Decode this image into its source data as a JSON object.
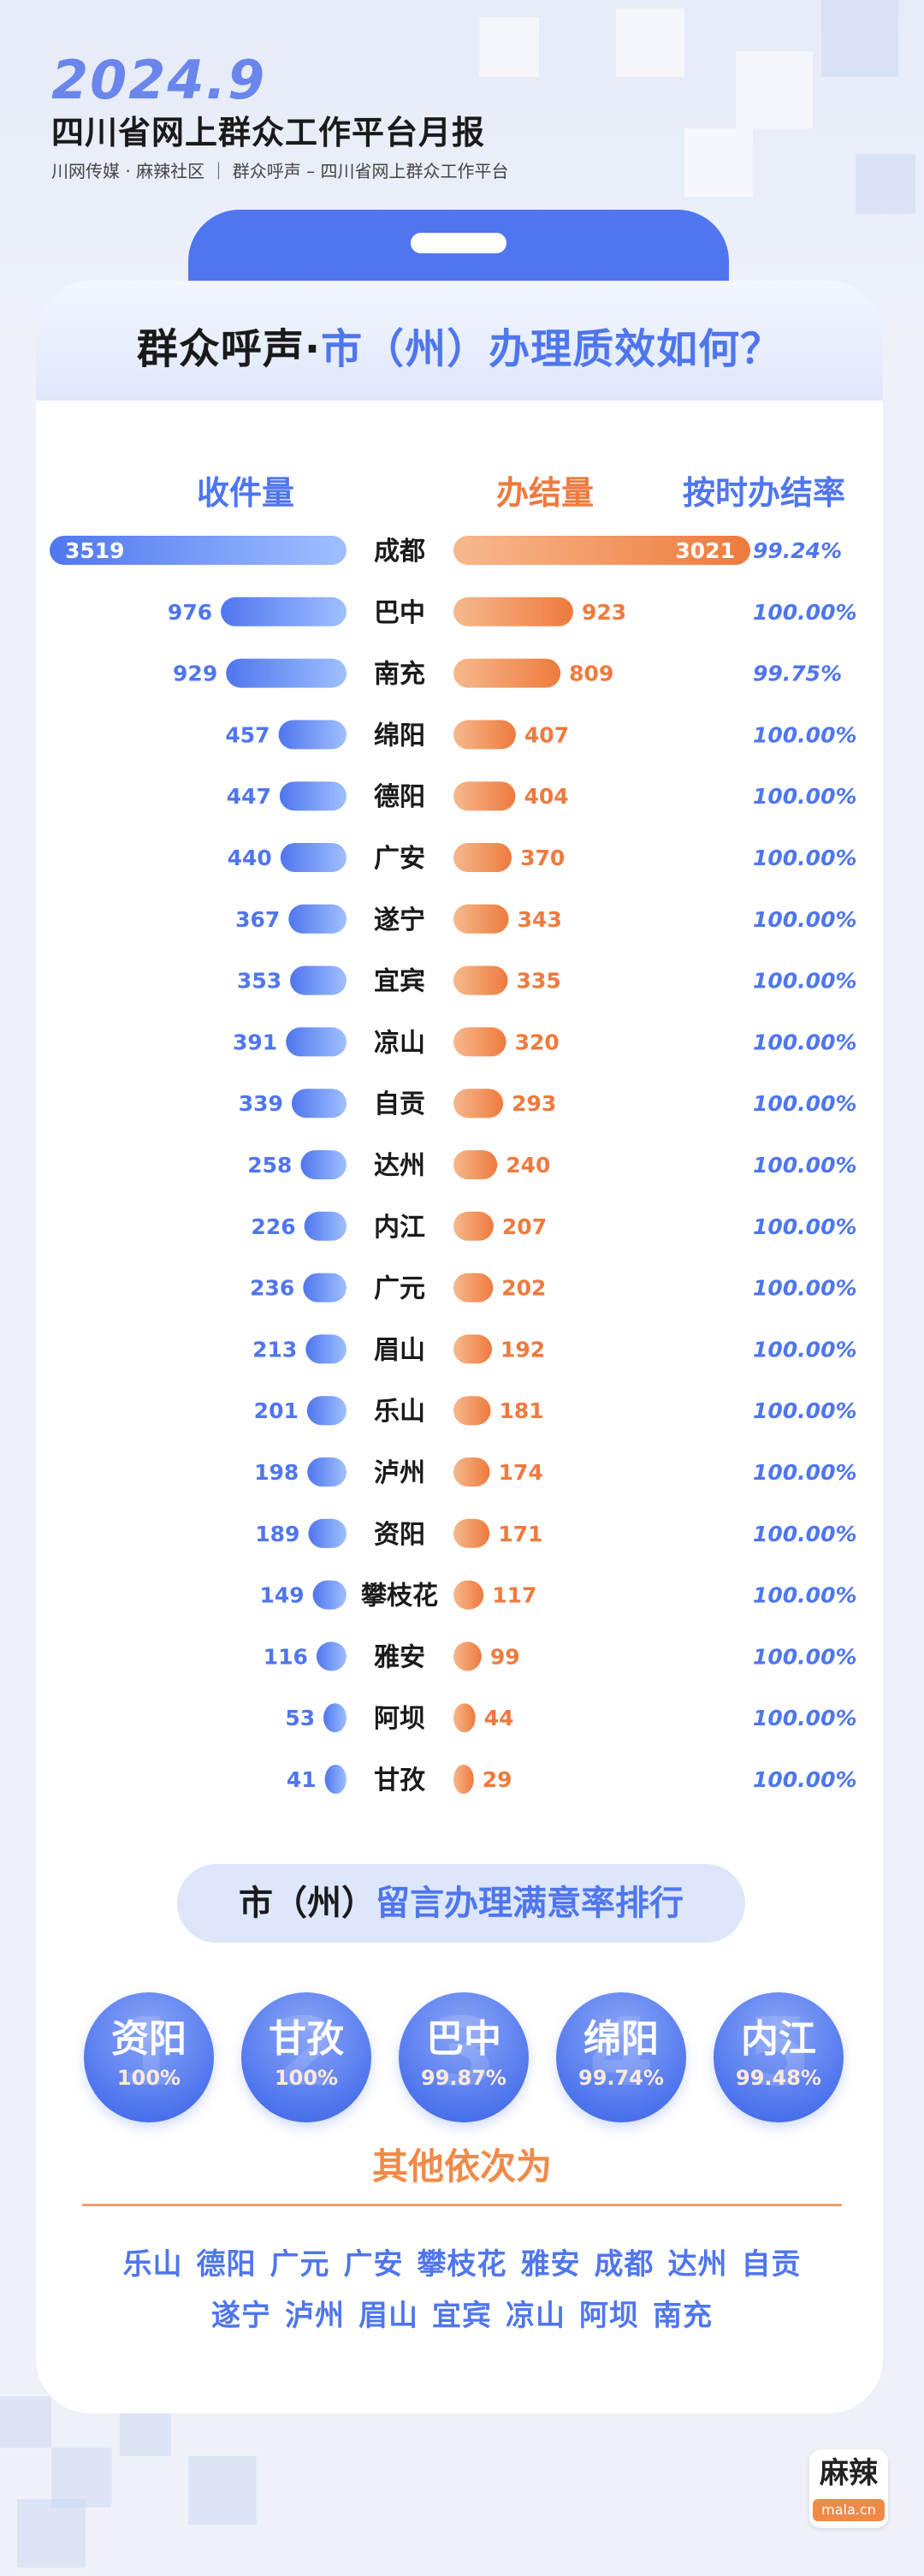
{
  "header": {
    "year": "2024.9",
    "title": "四川省网上群众工作平台月报",
    "subtitle": "川网传媒 · 麻辣社区 ｜ 群众呼声 – 四川省网上群众工作平台"
  },
  "card": {
    "title_part1": "群众呼声·",
    "title_part2": "市（州）办理质效如何？"
  },
  "columns": {
    "received": "收件量",
    "completed": "办结量",
    "ontime_rate": "按时办结率"
  },
  "colors": {
    "blue": "#4f76ee",
    "blue_light": "#9fc0ff",
    "orange": "#ee7a3e",
    "orange_light": "#f6b98d"
  },
  "chart_data": {
    "type": "bar",
    "categories": [
      "成都",
      "巴中",
      "南充",
      "绵阳",
      "德阳",
      "广安",
      "遂宁",
      "宜宾",
      "凉山",
      "自贡",
      "达州",
      "内江",
      "广元",
      "眉山",
      "乐山",
      "泸州",
      "资阳",
      "攀枝花",
      "雅安",
      "阿坝",
      "甘孜"
    ],
    "series": [
      {
        "name": "收件量",
        "values": [
          3519,
          976,
          929,
          457,
          447,
          440,
          367,
          353,
          391,
          339,
          258,
          226,
          236,
          213,
          201,
          198,
          189,
          149,
          116,
          53,
          41
        ]
      },
      {
        "name": "办结量",
        "values": [
          3021,
          923,
          809,
          407,
          404,
          370,
          343,
          335,
          320,
          293,
          240,
          207,
          202,
          192,
          181,
          174,
          171,
          117,
          99,
          44,
          29
        ]
      }
    ],
    "rates": [
      "99.24%",
      "100.00%",
      "99.75%",
      "100.00%",
      "100.00%",
      "100.00%",
      "100.00%",
      "100.00%",
      "100.00%",
      "100.00%",
      "100.00%",
      "100.00%",
      "100.00%",
      "100.00%",
      "100.00%",
      "100.00%",
      "100.00%",
      "100.00%",
      "100.00%",
      "100.00%",
      "100.00%"
    ]
  },
  "satisfaction": {
    "title_part1": "市（州）",
    "title_part2": "留言办理满意率排行",
    "top5": [
      {
        "rank": "1",
        "city": "资阳",
        "pct": "100%"
      },
      {
        "rank": "2",
        "city": "甘孜",
        "pct": "100%"
      },
      {
        "rank": "3",
        "city": "巴中",
        "pct": "99.87%"
      },
      {
        "rank": "4",
        "city": "绵阳",
        "pct": "99.74%"
      },
      {
        "rank": "5",
        "city": "内江",
        "pct": "99.48%"
      }
    ],
    "others_title": "其他依次为",
    "others_row1": [
      "乐山",
      "德阳",
      "广元",
      "广安",
      "攀枝花",
      "雅安",
      "成都",
      "达州",
      "自贡"
    ],
    "others_row2": [
      "遂宁",
      "泸州",
      "眉山",
      "宜宾",
      "凉山",
      "阿坝",
      "南充"
    ]
  },
  "logo": {
    "text": "麻辣",
    "url": "mala.cn"
  }
}
